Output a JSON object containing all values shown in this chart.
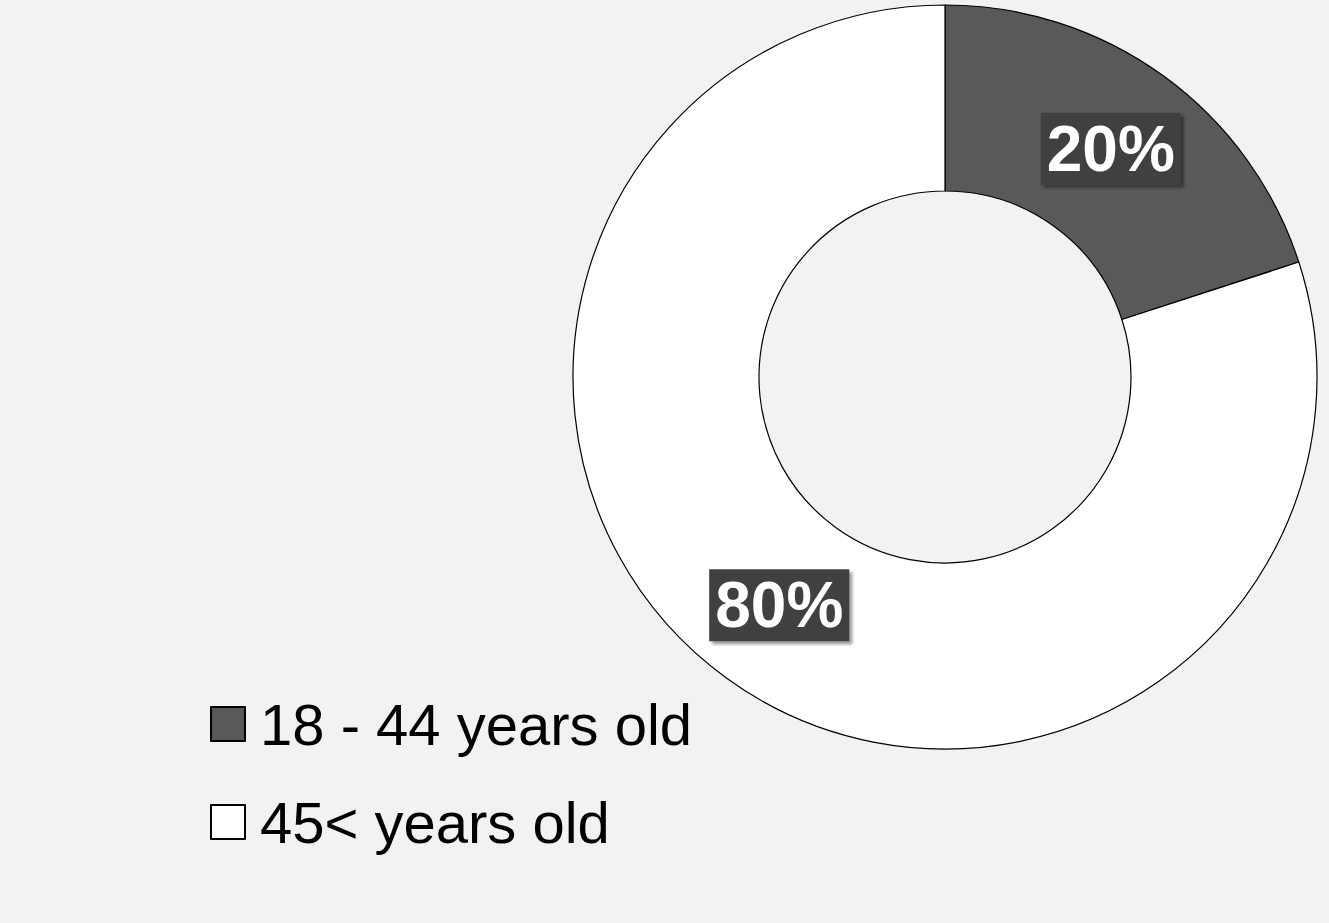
{
  "chart_data": {
    "type": "donut",
    "categories": [
      "18 - 44 years old",
      "45< years old"
    ],
    "values": [
      20,
      80
    ],
    "colors": [
      "#595959",
      "#ffffff"
    ],
    "value_labels": [
      "20%",
      "80%"
    ],
    "legend": "bottom left"
  }
}
